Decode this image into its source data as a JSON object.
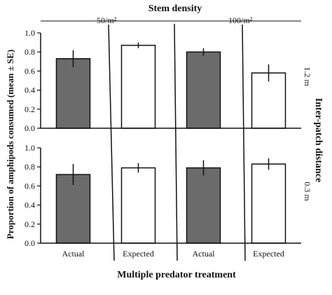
{
  "chart_data": {
    "type": "bar",
    "title": "Stem density",
    "ylabel": "Proportion of amphipods consumed (mean ± SE)",
    "xlabel": "Multiple predator treatment",
    "right_axis_label": "Inter-patch distance",
    "ylim": [
      0,
      1.0
    ],
    "yticks": [
      "0.0",
      "0.2",
      "0.4",
      "0.6",
      "0.8",
      "1.0"
    ],
    "categories": [
      "Actual",
      "Expected",
      "Actual",
      "Expected"
    ],
    "column_groups": [
      "50/m²",
      "100/m²"
    ],
    "row_groups": [
      "1.2 m",
      "0.3 m"
    ],
    "bar_fills": [
      "#6b6b6b",
      "#ffffff",
      "#6b6b6b",
      "#ffffff"
    ],
    "panels": [
      {
        "row": "1.2 m",
        "values": [
          0.73,
          0.87,
          0.8,
          0.58
        ],
        "errors": [
          0.09,
          0.03,
          0.04,
          0.09
        ]
      },
      {
        "row": "0.3 m",
        "values": [
          0.72,
          0.79,
          0.79,
          0.83
        ],
        "errors": [
          0.11,
          0.05,
          0.08,
          0.06
        ]
      }
    ]
  }
}
